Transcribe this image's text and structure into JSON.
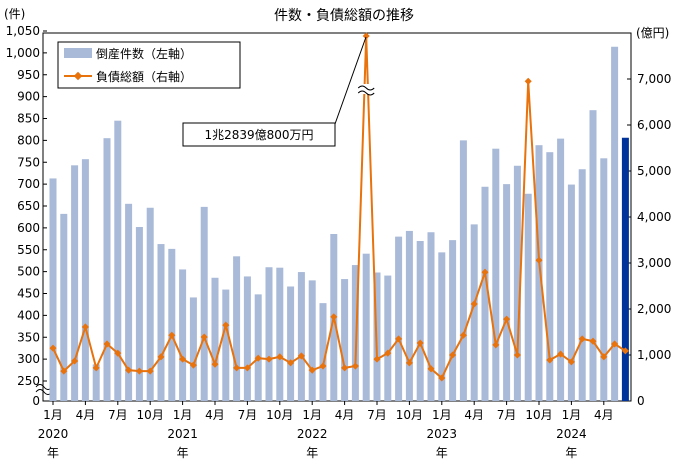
{
  "chart_data": {
    "type": "bar+line",
    "title": "件数・負債総額の推移",
    "ylabel_left": "(件)",
    "ylabel_right": "(億円)",
    "left_ticks": [
      "0",
      "250",
      "300",
      "350",
      "400",
      "450",
      "500",
      "550",
      "600",
      "650",
      "700",
      "750",
      "800",
      "850",
      "900",
      "950",
      "1,000",
      "1,050"
    ],
    "right_ticks": [
      "0",
      "1,000",
      "2,000",
      "3,000",
      "4,000",
      "5,000",
      "6,000",
      "7,000"
    ],
    "ylim_left": [
      0,
      1050
    ],
    "ylim_right": [
      0,
      8000
    ],
    "x_tick_labels": [
      "1月",
      "4月",
      "7月",
      "10月"
    ],
    "years": [
      "2020",
      "2021",
      "2022",
      "2023",
      "2024"
    ],
    "year_suffix": "年",
    "legend": {
      "bars": "倒産件数（左軸）",
      "line": "負債総額（右軸）"
    },
    "annotation": "1兆2839億800万円",
    "colors": {
      "bar": "#a9b9d8",
      "bar_latest": "#00339a",
      "line": "#e8720c"
    },
    "x": [
      "2020-01",
      "2020-02",
      "2020-03",
      "2020-04",
      "2020-05",
      "2020-06",
      "2020-07",
      "2020-08",
      "2020-09",
      "2020-10",
      "2020-11",
      "2020-12",
      "2021-01",
      "2021-02",
      "2021-03",
      "2021-04",
      "2021-05",
      "2021-06",
      "2021-07",
      "2021-08",
      "2021-09",
      "2021-10",
      "2021-11",
      "2021-12",
      "2022-01",
      "2022-02",
      "2022-03",
      "2022-04",
      "2022-05",
      "2022-06",
      "2022-07",
      "2022-08",
      "2022-09",
      "2022-10",
      "2022-11",
      "2022-12",
      "2023-01",
      "2023-02",
      "2023-03",
      "2023-04",
      "2023-05",
      "2023-06",
      "2023-07",
      "2023-08",
      "2023-09",
      "2023-10",
      "2023-11",
      "2023-12",
      "2024-01",
      "2024-02",
      "2024-03",
      "2024-04",
      "2024-05",
      "2024-06"
    ],
    "series": [
      {
        "name": "倒産件数",
        "axis": "left",
        "values": [
          713,
          632,
          743,
          757,
          288,
          805,
          845,
          655,
          602,
          646,
          563,
          552,
          505,
          441,
          648,
          486,
          459,
          535,
          489,
          448,
          510,
          509,
          466,
          499,
          480,
          428,
          586,
          483,
          515,
          541,
          498,
          491,
          580,
          593,
          570,
          590,
          544,
          572,
          800,
          608,
          694,
          781,
          700,
          742,
          678,
          789,
          773,
          804,
          699,
          734,
          869,
          759,
          1014,
          806
        ]
      },
      {
        "name": "負債総額",
        "axis": "right",
        "values": [
          1150,
          650,
          870,
          1610,
          720,
          1240,
          1040,
          670,
          650,
          650,
          960,
          1430,
          910,
          780,
          1390,
          800,
          1650,
          720,
          720,
          930,
          910,
          960,
          830,
          980,
          670,
          760,
          1830,
          720,
          760,
          12839,
          910,
          1040,
          1350,
          830,
          1260,
          700,
          500,
          1000,
          1430,
          2110,
          2800,
          1220,
          1780,
          1000,
          6950,
          3060,
          890,
          1020,
          850,
          1350,
          1300,
          960,
          1240,
          1090
        ]
      }
    ]
  }
}
